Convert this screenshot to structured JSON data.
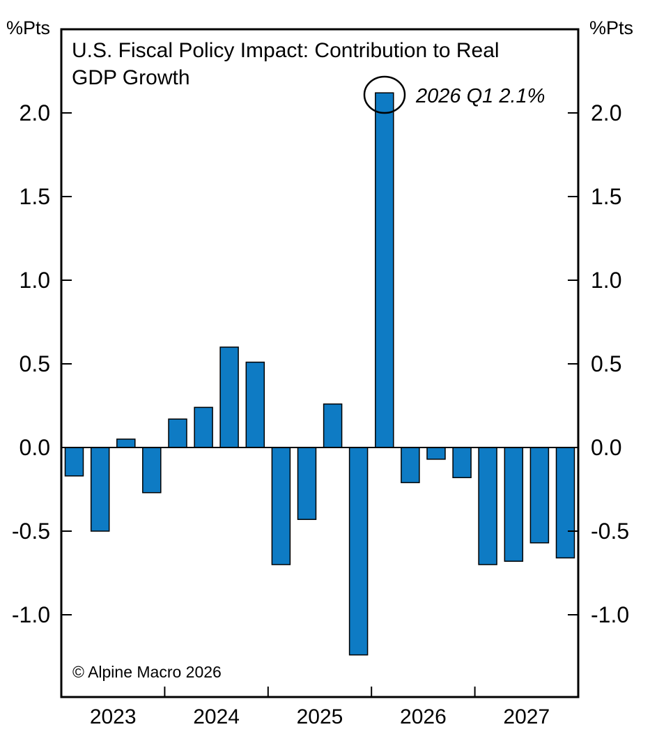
{
  "figure": {
    "title_line1": "U.S. Fiscal Policy Impact: Contribution to Real",
    "title_line2": "GDP Growth",
    "unit_left": "%Pts",
    "unit_right": "%Pts",
    "copyright": "© Alpine Macro 2026",
    "annotation_label": "2026 Q1 2.1%"
  },
  "chart_data": {
    "type": "bar",
    "title": "U.S. Fiscal Policy Impact: Contribution to Real GDP Growth",
    "xlabel": "",
    "ylabel": "%Pts",
    "categories": [
      "2023 Q1",
      "2023 Q2",
      "2023 Q3",
      "2023 Q4",
      "2024 Q1",
      "2024 Q2",
      "2024 Q3",
      "2024 Q4",
      "2025 Q1",
      "2025 Q2",
      "2025 Q3",
      "2025 Q4",
      "2026 Q1",
      "2026 Q2",
      "2026 Q3",
      "2026 Q4",
      "2027 Q1",
      "2027 Q2",
      "2027 Q3",
      "2027 Q4"
    ],
    "values": [
      -0.17,
      -0.5,
      0.05,
      -0.27,
      0.17,
      0.24,
      0.6,
      0.51,
      -0.7,
      -0.43,
      0.26,
      -1.24,
      2.12,
      -0.21,
      -0.07,
      -0.18,
      -0.7,
      -0.68,
      -0.57,
      -0.66
    ],
    "x_year_labels": [
      "2023",
      "2024",
      "2025",
      "2026",
      "2027"
    ],
    "y_ticks": [
      {
        "v": 2.0,
        "label": "2.0"
      },
      {
        "v": 1.5,
        "label": "1.5"
      },
      {
        "v": 1.0,
        "label": "1.0"
      },
      {
        "v": 0.5,
        "label": "0.5"
      },
      {
        "v": 0.0,
        "label": "0.0"
      },
      {
        "v": -0.5,
        "label": "-0.5"
      },
      {
        "v": -1.0,
        "label": "-1.0"
      }
    ],
    "ylim": [
      -1.49,
      2.5
    ],
    "grid": false,
    "legend_position": "none",
    "bar_color": "#0e7bc4",
    "bar_edge_color": "#000000",
    "annotation": {
      "text": "2026 Q1 2.1%",
      "category": "2026 Q1",
      "value": 2.12,
      "style": "circled-bar-top"
    }
  }
}
